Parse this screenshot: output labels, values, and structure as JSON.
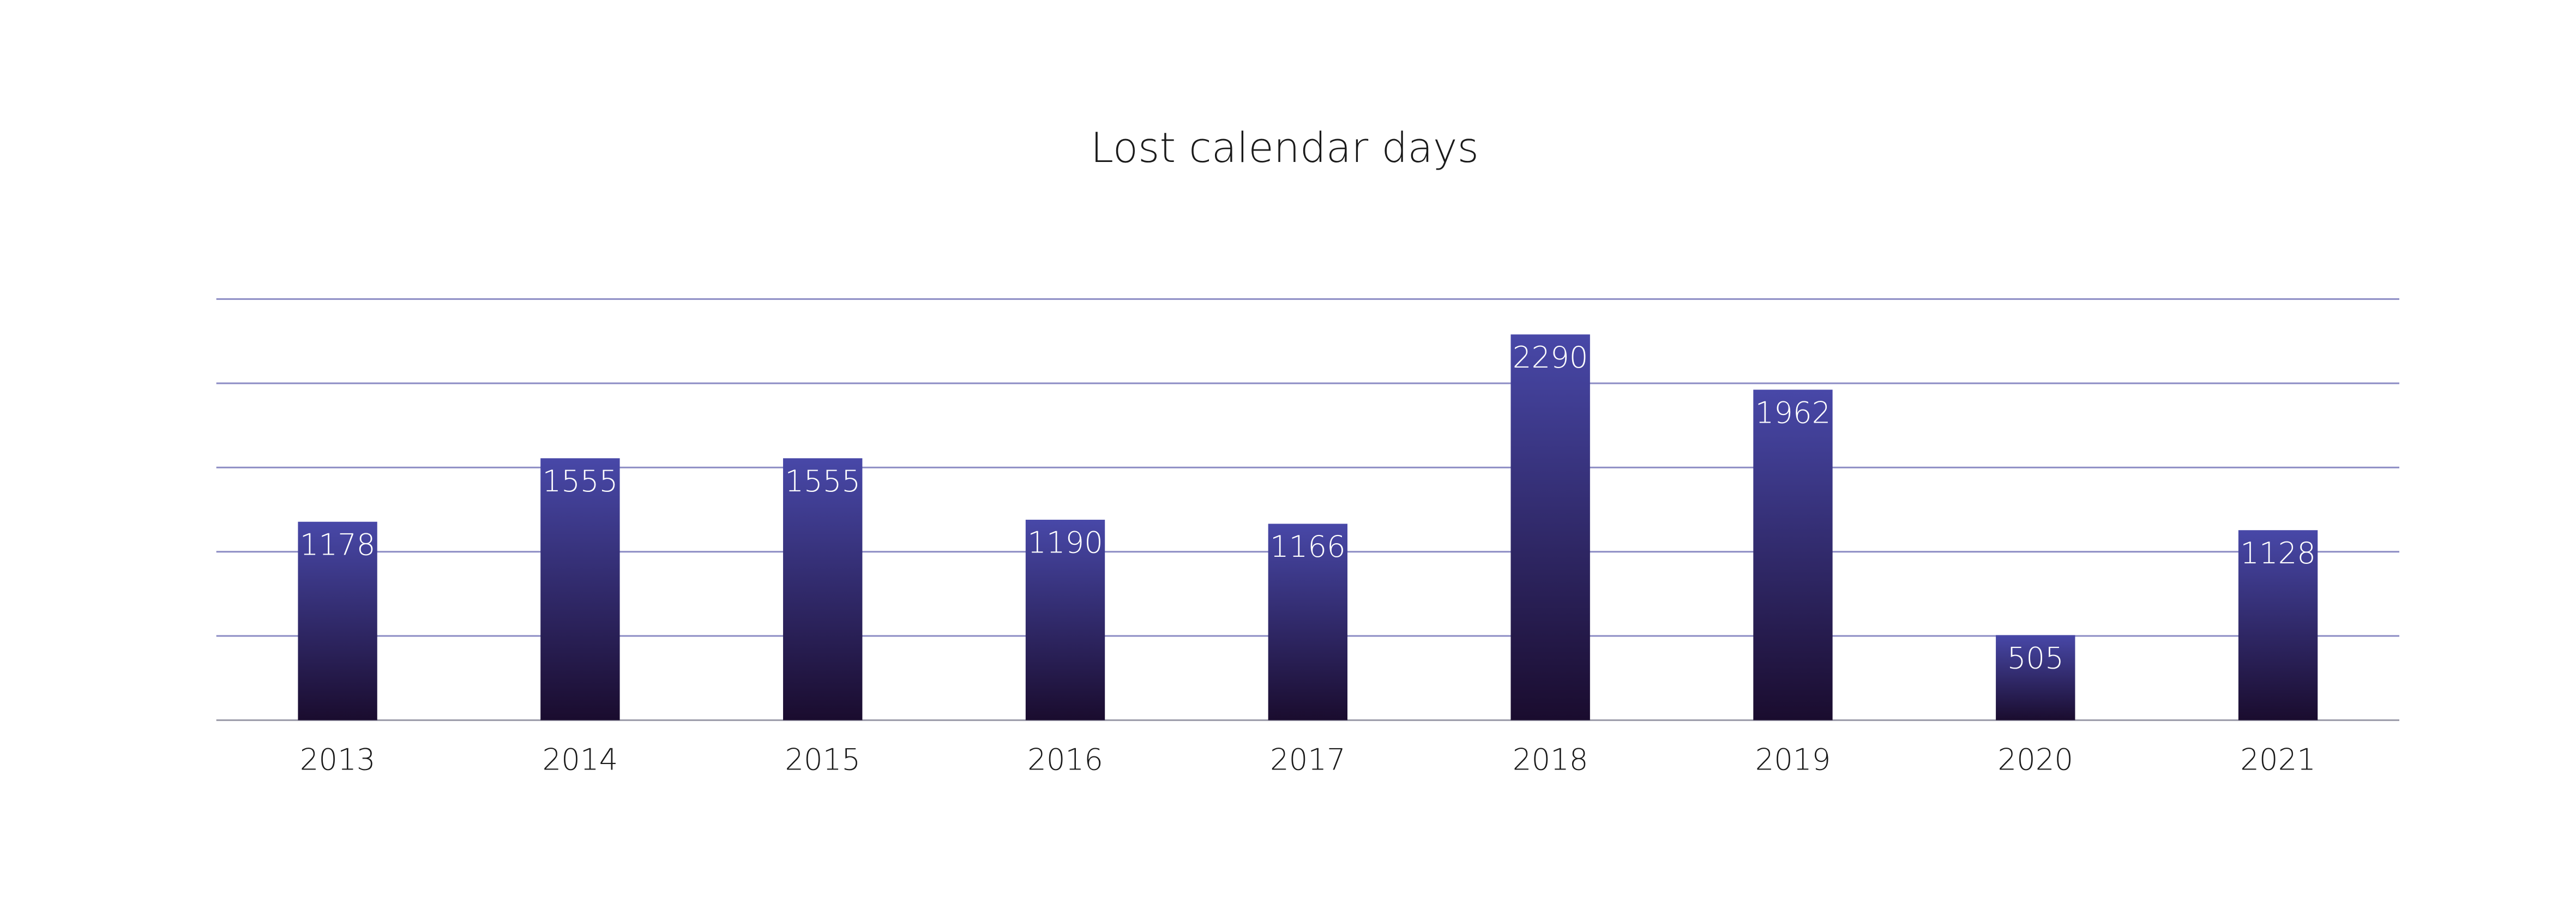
{
  "chart_data": {
    "type": "bar",
    "title": "Lost calendar days",
    "categories": [
      "2013",
      "2014",
      "2015",
      "2016",
      "2017",
      "2018",
      "2019",
      "2020",
      "2021"
    ],
    "values": [
      1178,
      1555,
      1555,
      1190,
      1166,
      2290,
      1962,
      505,
      1128
    ],
    "color": "#4848a8",
    "ylim": [
      0,
      2500
    ],
    "yticks": [
      0,
      500,
      1000,
      1500,
      2000,
      2500
    ],
    "grid": true
  }
}
